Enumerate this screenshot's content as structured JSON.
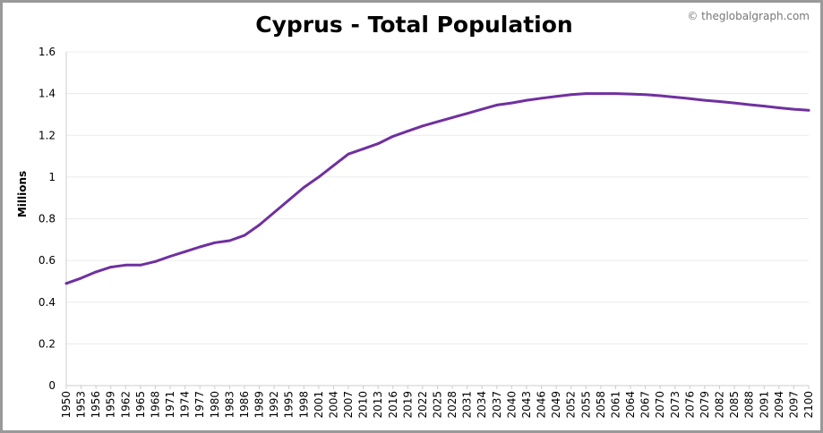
{
  "credit": "© theglobalgraph.com",
  "chart_data": {
    "type": "line",
    "title": "Cyprus - Total Population",
    "xlabel": "",
    "ylabel": "Millions",
    "xlim": [
      1950,
      2100
    ],
    "ylim": [
      0,
      1.6
    ],
    "yticks": [
      0,
      0.2,
      0.4,
      0.6,
      0.8,
      1,
      1.2,
      1.4,
      1.6
    ],
    "ytick_labels": [
      "0",
      "0.2",
      "0.4",
      "0.6",
      "0.8",
      "1",
      "1.2",
      "1.4",
      "1.6"
    ],
    "xtick_labels": [
      "1950",
      "1953",
      "1956",
      "1959",
      "1962",
      "1965",
      "1968",
      "1971",
      "1974",
      "1977",
      "1980",
      "1983",
      "1986",
      "1989",
      "1992",
      "1995",
      "1998",
      "2001",
      "2004",
      "2007",
      "2010",
      "2013",
      "2016",
      "2019",
      "2022",
      "2025",
      "2028",
      "2031",
      "2034",
      "2037",
      "2040",
      "2043",
      "2046",
      "2049",
      "2052",
      "2055",
      "2058",
      "2061",
      "2064",
      "2067",
      "2070",
      "2073",
      "2076",
      "2079",
      "2082",
      "2085",
      "2088",
      "2091",
      "2094",
      "2097",
      "2100"
    ],
    "grid": true,
    "line_color": "#7030a0",
    "series": [
      {
        "name": "Total Population",
        "x": [
          1950,
          1953,
          1956,
          1959,
          1962,
          1965,
          1968,
          1971,
          1974,
          1977,
          1980,
          1983,
          1986,
          1989,
          1992,
          1995,
          1998,
          2001,
          2004,
          2007,
          2010,
          2013,
          2016,
          2019,
          2022,
          2025,
          2028,
          2031,
          2034,
          2037,
          2040,
          2043,
          2046,
          2049,
          2052,
          2055,
          2058,
          2061,
          2064,
          2067,
          2070,
          2073,
          2076,
          2079,
          2082,
          2085,
          2088,
          2091,
          2094,
          2097,
          2100
        ],
        "values": [
          0.49,
          0.515,
          0.545,
          0.568,
          0.578,
          0.578,
          0.595,
          0.62,
          0.642,
          0.665,
          0.685,
          0.695,
          0.72,
          0.77,
          0.83,
          0.89,
          0.95,
          1.0,
          1.055,
          1.11,
          1.135,
          1.16,
          1.195,
          1.22,
          1.245,
          1.265,
          1.285,
          1.305,
          1.325,
          1.345,
          1.355,
          1.368,
          1.378,
          1.387,
          1.395,
          1.4,
          1.4,
          1.4,
          1.398,
          1.395,
          1.39,
          1.383,
          1.376,
          1.368,
          1.362,
          1.355,
          1.347,
          1.34,
          1.332,
          1.325,
          1.32
        ]
      }
    ]
  }
}
